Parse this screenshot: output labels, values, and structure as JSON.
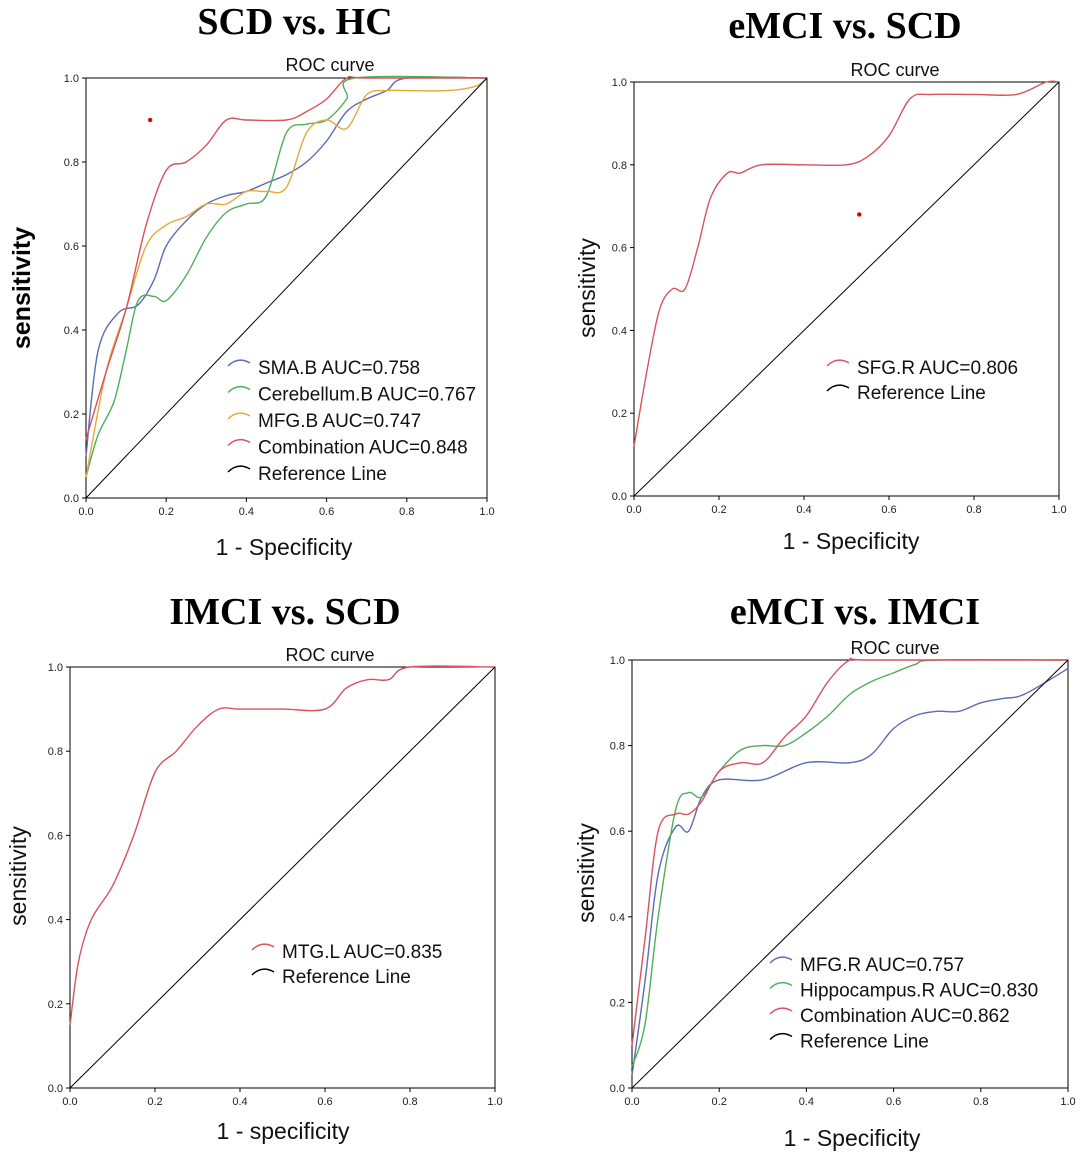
{
  "chart_data": [
    {
      "type": "line",
      "title": "SCD vs. HC",
      "subtitle": "ROC curve",
      "xlabel": "1 - Specificity",
      "ylabel": "sensitivity",
      "xlim": [
        0,
        1
      ],
      "ylim": [
        0,
        1
      ],
      "xticks": [
        "0.0",
        "0.2",
        "0.4",
        "0.6",
        "0.8",
        "1.0"
      ],
      "yticks": [
        "0.0",
        "0.2",
        "0.4",
        "0.6",
        "0.8",
        "1.0"
      ],
      "legend_position": "bottom-right",
      "series": [
        {
          "name": "SMA.B AUC=0.758",
          "color": "#5B6BB5",
          "x": [
            0.0,
            0.03,
            0.08,
            0.13,
            0.17,
            0.2,
            0.25,
            0.3,
            0.35,
            0.4,
            0.45,
            0.5,
            0.55,
            0.6,
            0.65,
            0.7,
            0.75,
            0.8,
            1.0
          ],
          "y": [
            0.1,
            0.35,
            0.44,
            0.46,
            0.52,
            0.6,
            0.66,
            0.7,
            0.72,
            0.73,
            0.75,
            0.77,
            0.8,
            0.85,
            0.92,
            0.95,
            0.97,
            1.0,
            1.0
          ]
        },
        {
          "name": "Cerebellum.B AUC=0.767",
          "color": "#4DAF5B",
          "x": [
            0.0,
            0.03,
            0.07,
            0.1,
            0.13,
            0.17,
            0.2,
            0.25,
            0.3,
            0.35,
            0.4,
            0.45,
            0.5,
            0.55,
            0.6,
            0.65,
            0.67,
            1.0
          ],
          "y": [
            0.05,
            0.15,
            0.23,
            0.35,
            0.47,
            0.48,
            0.47,
            0.53,
            0.62,
            0.68,
            0.7,
            0.72,
            0.87,
            0.89,
            0.9,
            0.95,
            1.0,
            1.0
          ]
        },
        {
          "name": "MFG.B AUC=0.747",
          "color": "#E8A838",
          "x": [
            0.0,
            0.05,
            0.1,
            0.15,
            0.2,
            0.25,
            0.3,
            0.35,
            0.4,
            0.45,
            0.5,
            0.55,
            0.6,
            0.65,
            0.7,
            0.75,
            0.8,
            0.9,
            0.97,
            1.0
          ],
          "y": [
            0.05,
            0.3,
            0.45,
            0.6,
            0.65,
            0.67,
            0.7,
            0.7,
            0.73,
            0.73,
            0.74,
            0.87,
            0.9,
            0.88,
            0.96,
            0.97,
            0.97,
            0.97,
            0.98,
            1.0
          ]
        },
        {
          "name": "Combination AUC=0.848",
          "color": "#D9525E",
          "x": [
            0.0,
            0.05,
            0.1,
            0.15,
            0.2,
            0.25,
            0.3,
            0.35,
            0.4,
            0.5,
            0.55,
            0.6,
            0.65,
            0.7,
            1.0
          ],
          "y": [
            0.14,
            0.3,
            0.45,
            0.65,
            0.78,
            0.8,
            0.84,
            0.9,
            0.9,
            0.9,
            0.92,
            0.95,
            1.0,
            1.0,
            1.0
          ]
        },
        {
          "name": "Reference Line",
          "color": "#000000",
          "x": [
            0,
            1
          ],
          "y": [
            0,
            1
          ]
        }
      ],
      "annotations": [
        {
          "type": "dot",
          "x": 0.16,
          "y": 0.9,
          "color": "#DD0000"
        }
      ]
    },
    {
      "type": "line",
      "title": "eMCI vs. SCD",
      "subtitle": "ROC curve",
      "xlabel": "1 - Specificity",
      "ylabel": "sensitivity",
      "xlim": [
        0,
        1
      ],
      "ylim": [
        0,
        1
      ],
      "xticks": [
        "0.0",
        "0.2",
        "0.4",
        "0.6",
        "0.8",
        "1.0"
      ],
      "yticks": [
        "0.0",
        "0.2",
        "0.4",
        "0.6",
        "0.8",
        "1.0"
      ],
      "legend_position": "bottom-right",
      "series": [
        {
          "name": "SFG.R AUC=0.806",
          "color": "#D9525E",
          "x": [
            0.0,
            0.03,
            0.06,
            0.09,
            0.12,
            0.15,
            0.18,
            0.22,
            0.25,
            0.3,
            0.4,
            0.5,
            0.55,
            0.6,
            0.65,
            0.7,
            0.8,
            0.9,
            0.97,
            1.0
          ],
          "y": [
            0.12,
            0.3,
            0.45,
            0.5,
            0.5,
            0.6,
            0.72,
            0.78,
            0.78,
            0.8,
            0.8,
            0.8,
            0.82,
            0.87,
            0.96,
            0.97,
            0.97,
            0.97,
            1.0,
            1.0
          ]
        },
        {
          "name": "Reference Line",
          "color": "#000000",
          "x": [
            0,
            1
          ],
          "y": [
            0,
            1
          ]
        }
      ],
      "annotations": [
        {
          "type": "dot",
          "x": 0.53,
          "y": 0.68,
          "color": "#DD0000"
        }
      ]
    },
    {
      "type": "line",
      "title": "IMCI vs. SCD",
      "subtitle": "ROC curve",
      "xlabel": "1 - specificity",
      "ylabel": "sensitivity",
      "xlim": [
        0,
        1
      ],
      "ylim": [
        0,
        1
      ],
      "xticks": [
        "0.0",
        "0.2",
        "0.4",
        "0.6",
        "0.8",
        "1.0"
      ],
      "yticks": [
        "0.0",
        "0.2",
        "0.4",
        "0.6",
        "0.8",
        "1.0"
      ],
      "legend_position": "bottom-right",
      "series": [
        {
          "name": "MTG.L AUC=0.835",
          "color": "#D9525E",
          "x": [
            0.0,
            0.02,
            0.05,
            0.1,
            0.15,
            0.2,
            0.25,
            0.3,
            0.35,
            0.4,
            0.5,
            0.6,
            0.65,
            0.7,
            0.75,
            0.8,
            1.0
          ],
          "y": [
            0.15,
            0.3,
            0.4,
            0.48,
            0.6,
            0.75,
            0.8,
            0.86,
            0.9,
            0.9,
            0.9,
            0.9,
            0.95,
            0.97,
            0.97,
            1.0,
            1.0
          ]
        },
        {
          "name": "Reference Line",
          "color": "#000000",
          "x": [
            0,
            1
          ],
          "y": [
            0,
            1
          ]
        }
      ],
      "annotations": []
    },
    {
      "type": "line",
      "title": "eMCI vs. IMCI",
      "subtitle": "ROC curve",
      "xlabel": "1 - Specificity",
      "ylabel": "sensitivity",
      "xlim": [
        0,
        1
      ],
      "ylim": [
        0,
        1
      ],
      "xticks": [
        "0.0",
        "0.2",
        "0.4",
        "0.6",
        "0.8",
        "1.0"
      ],
      "yticks": [
        "0.0",
        "0.2",
        "0.4",
        "0.6",
        "0.8",
        "1.0"
      ],
      "legend_position": "bottom-right",
      "series": [
        {
          "name": "MFG.R AUC=0.757",
          "color": "#5B6BB5",
          "x": [
            0.0,
            0.03,
            0.06,
            0.1,
            0.13,
            0.16,
            0.2,
            0.3,
            0.4,
            0.5,
            0.55,
            0.6,
            0.65,
            0.7,
            0.75,
            0.8,
            0.85,
            0.9,
            1.0
          ],
          "y": [
            0.03,
            0.25,
            0.5,
            0.61,
            0.6,
            0.68,
            0.72,
            0.72,
            0.76,
            0.76,
            0.78,
            0.84,
            0.87,
            0.88,
            0.88,
            0.9,
            0.91,
            0.92,
            0.98
          ]
        },
        {
          "name": "Hippocampus.R AUC=0.830",
          "color": "#4DAF5B",
          "x": [
            0.0,
            0.03,
            0.06,
            0.1,
            0.13,
            0.16,
            0.2,
            0.25,
            0.3,
            0.35,
            0.4,
            0.45,
            0.5,
            0.55,
            0.6,
            0.65,
            0.7,
            1.0
          ],
          "y": [
            0.05,
            0.15,
            0.4,
            0.65,
            0.69,
            0.68,
            0.74,
            0.79,
            0.8,
            0.8,
            0.83,
            0.87,
            0.92,
            0.95,
            0.97,
            0.99,
            1.0,
            1.0
          ]
        },
        {
          "name": "Combination AUC=0.862",
          "color": "#D9525E",
          "x": [
            0.0,
            0.03,
            0.06,
            0.1,
            0.13,
            0.16,
            0.2,
            0.25,
            0.3,
            0.35,
            0.4,
            0.45,
            0.5,
            0.55,
            1.0
          ],
          "y": [
            0.1,
            0.35,
            0.6,
            0.64,
            0.64,
            0.67,
            0.74,
            0.76,
            0.76,
            0.82,
            0.87,
            0.95,
            1.0,
            1.0,
            1.0
          ]
        },
        {
          "name": "Reference Line",
          "color": "#000000",
          "x": [
            0,
            1
          ],
          "y": [
            0,
            1
          ]
        }
      ],
      "annotations": []
    }
  ]
}
